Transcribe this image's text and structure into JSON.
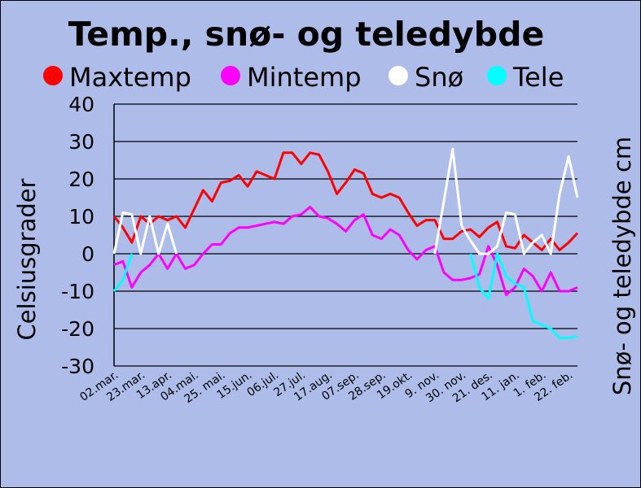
{
  "chart_data": {
    "type": "line",
    "title": "Temp., snø- og teledybde",
    "ylabel": "Celsiusgrader",
    "y2label": "Snø- og teledybde cm",
    "ylim": [
      -30,
      40
    ],
    "yticks": [
      40,
      30,
      20,
      10,
      0,
      -10,
      -20,
      -30
    ],
    "grid": true,
    "legend_position": "top",
    "xticklabels": [
      "02.mar.",
      "23.mar.",
      "13.apr.",
      "04.mai.",
      "25. mai.",
      "15.jun.",
      "06.jul.",
      "27.jul.",
      "17.aug.",
      "07.sep.",
      "28.sep.",
      "19.okt.",
      "9. nov.",
      "30. nov.",
      "21. des.",
      "11. jan.",
      "1. feb.",
      "22. feb."
    ],
    "points_per_label": 3,
    "series": [
      {
        "name": "Maxtemp",
        "color": "#ff0000",
        "values": [
          10,
          7,
          3,
          10,
          8,
          10,
          9,
          10,
          7,
          12,
          17,
          14,
          19,
          19.5,
          21,
          18,
          22,
          21,
          20,
          27,
          27,
          24,
          27,
          26.5,
          22,
          16,
          19,
          22.5,
          21.5,
          16,
          15,
          16,
          15,
          11,
          7.5,
          9,
          9,
          4,
          4,
          6,
          6.5,
          4.5,
          7,
          8.5,
          2,
          1.5,
          5,
          3,
          1,
          4,
          1,
          3,
          5.5
        ]
      },
      {
        "name": "Mintemp",
        "color": "#ff00ff",
        "values": [
          -3,
          -2,
          -9,
          -5,
          -3,
          0,
          -4,
          0,
          -4,
          -3,
          0,
          2.5,
          2.5,
          5.5,
          7,
          7,
          7.5,
          8,
          8.5,
          8,
          10,
          10.5,
          12.5,
          10,
          9.5,
          8,
          6,
          9,
          10.5,
          5,
          4,
          6.5,
          5,
          1,
          -1.5,
          1,
          2,
          -5,
          -7,
          -7,
          -6.5,
          -5.5,
          2,
          -3,
          -11,
          -9,
          -4,
          -6,
          -10,
          -5,
          -10,
          -10,
          -9
        ]
      },
      {
        "name": "Snø",
        "color": "#ffffff",
        "values": [
          0,
          11,
          10.5,
          0,
          10,
          0,
          8,
          0,
          null,
          null,
          null,
          null,
          null,
          null,
          null,
          null,
          null,
          null,
          null,
          null,
          null,
          null,
          null,
          null,
          null,
          null,
          null,
          null,
          null,
          null,
          null,
          null,
          null,
          null,
          null,
          null,
          0,
          14,
          28,
          7.5,
          3.5,
          0,
          0,
          2,
          11,
          10.5,
          0,
          3,
          5,
          0,
          16,
          26,
          15
        ]
      },
      {
        "name": "Tele",
        "color": "#00ffff",
        "values": [
          -10,
          -7,
          0,
          null,
          null,
          null,
          null,
          null,
          null,
          null,
          null,
          null,
          null,
          null,
          null,
          null,
          null,
          null,
          null,
          null,
          null,
          null,
          null,
          null,
          null,
          null,
          null,
          null,
          null,
          null,
          null,
          null,
          null,
          null,
          null,
          null,
          null,
          null,
          null,
          null,
          0,
          -9,
          -12,
          0,
          -6,
          -8,
          -9,
          -18,
          -19,
          -20,
          -22.5,
          -22.5,
          -22
        ]
      }
    ]
  }
}
